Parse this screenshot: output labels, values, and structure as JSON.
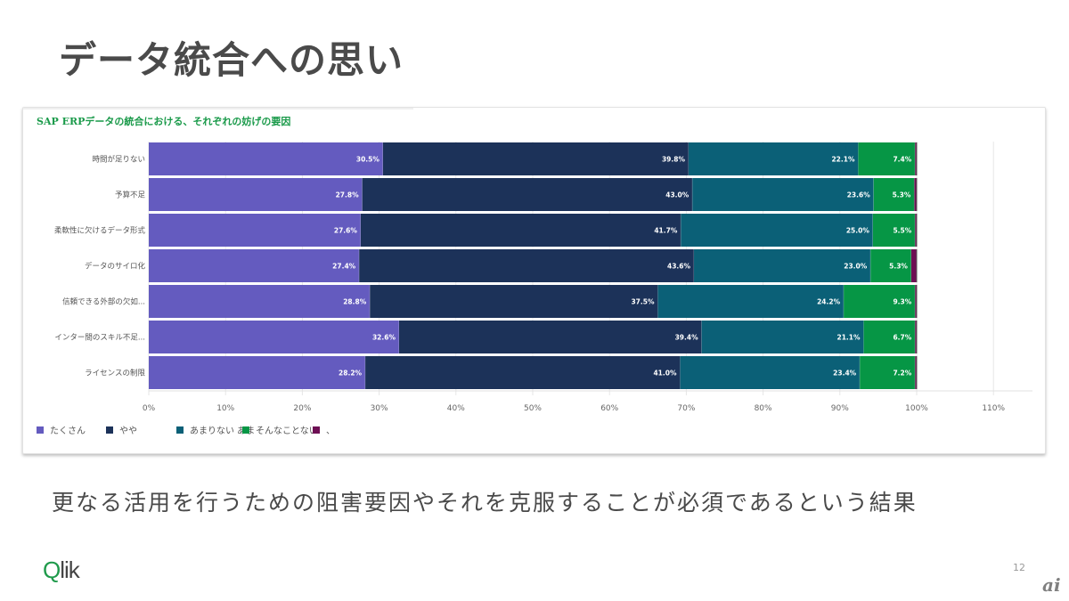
{
  "slide": {
    "title": "データ統合への思い",
    "subtitle": "更なる活用を行うための阻害要因やそれを克服することが必須であるという結果",
    "logo_q": "Q",
    "logo_rest": "lik",
    "page_number": "12",
    "watermark": "ai"
  },
  "chart_data": {
    "type": "bar",
    "orientation": "horizontal",
    "stacked": true,
    "title": "SAP ERPデータの統合における、それぞれの妨げの要因",
    "categories": [
      "時間が足りない",
      "予算不足",
      "柔軟性に欠けるデータ形式",
      "データのサイロ化",
      "信頼できる外部の欠如...",
      "インター間のスキル不足...",
      "ライセンスの制限"
    ],
    "series": [
      {
        "name": "たくさん",
        "color": "#645bbf",
        "values": [
          30.5,
          27.8,
          27.6,
          27.4,
          28.8,
          32.6,
          28.2
        ],
        "labels": [
          "30.5%",
          "27.8%",
          "27.6%",
          "27.4%",
          "28.8%",
          "32.6%",
          "28.2%"
        ]
      },
      {
        "name": "やや",
        "color": "#1c3259",
        "values": [
          39.8,
          43.0,
          41.7,
          43.6,
          37.5,
          39.4,
          41.0
        ],
        "labels": [
          "39.8%",
          "43.0%",
          "41.7%",
          "43.6%",
          "37.5%",
          "39.4%",
          "41.0%"
        ]
      },
      {
        "name": "あまりない あま",
        "color": "#0b6077",
        "values": [
          22.1,
          23.6,
          25.0,
          23.0,
          24.2,
          21.1,
          23.4
        ],
        "labels": [
          "22.1%",
          "23.6%",
          "25.0%",
          "23.0%",
          "24.2%",
          "21.1%",
          "23.4%"
        ]
      },
      {
        "name": "そんなことない",
        "color": "#069645",
        "values": [
          7.4,
          5.3,
          5.5,
          5.3,
          9.3,
          6.7,
          7.2
        ],
        "labels": [
          "7.4%",
          "5.3%",
          "5.5%",
          "5.3%",
          "9.3%",
          "6.7%",
          "7.2%"
        ]
      },
      {
        "name": "、",
        "color": "#6e0f54",
        "values": [
          0.2,
          0.3,
          0.2,
          0.7,
          0.2,
          0.2,
          0.2
        ],
        "labels": [
          "",
          "",
          "",
          "",
          "",
          "",
          ""
        ]
      }
    ],
    "xlim": [
      0,
      115
    ],
    "xticks": [
      0,
      10,
      20,
      30,
      40,
      50,
      60,
      70,
      80,
      90,
      100,
      110
    ],
    "xtick_labels": [
      "0%",
      "10%",
      "20%",
      "30%",
      "40%",
      "50%",
      "60%",
      "70%",
      "80%",
      "90%",
      "100%",
      "110%"
    ],
    "grid": true,
    "legend_position": "bottom-left"
  }
}
